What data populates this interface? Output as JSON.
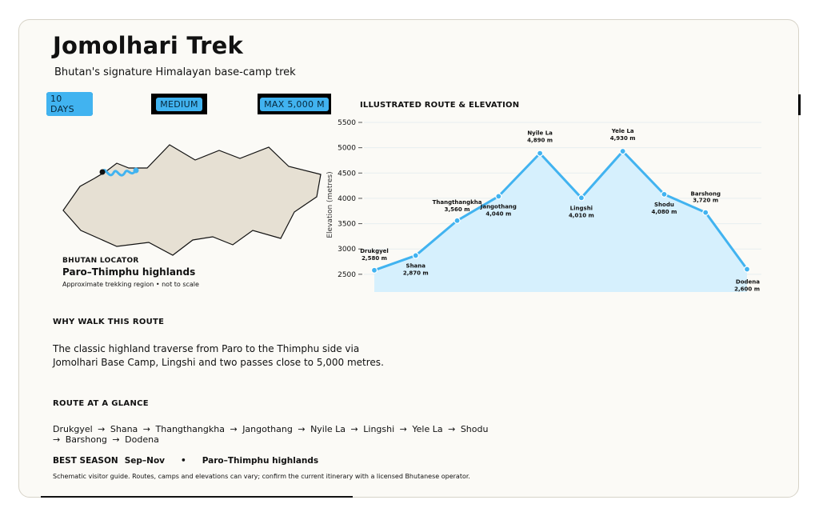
{
  "header": {
    "title": "Jomolhari Trek",
    "subtitle": "Bhutan's signature Himalayan base-camp trek"
  },
  "chips": [
    "10 DAYS",
    "MEDIUM",
    "MAX 5,000 M"
  ],
  "locator": {
    "label": "BHUTAN LOCATOR",
    "region": "Paro–Thimphu highlands",
    "note": "Approximate trekking region • not to scale"
  },
  "elevation": {
    "heading": "ILLUSTRATED ROUTE & ELEVATION"
  },
  "why": {
    "heading": "WHY WALK THIS ROUTE",
    "text": "The classic highland traverse from Paro to the Thimphu side via Jomolhari Base Camp, Lingshi and two passes close to 5,000 metres."
  },
  "glance": {
    "heading": "ROUTE AT A GLANCE",
    "stops": [
      "Drukgyel",
      "Shana",
      "Thangthangkha",
      "Jangothang",
      "Nyile La",
      "Lingshi",
      "Yele La",
      "Shodu",
      "Barshong",
      "Dodena"
    ]
  },
  "season": {
    "label": "BEST SEASON",
    "value": "Sep–Nov",
    "separator": "•",
    "region": "Paro–Thimphu highlands"
  },
  "footer": "Schematic visitor guide. Routes, camps and elevations can vary; confirm the current itinerary with a licensed Bhutanese operator.",
  "colors": {
    "accent": "#41b3f0",
    "area": "#d6f0fd",
    "map_fill": "#e6e0d3"
  },
  "chart_data": {
    "type": "line",
    "ylabel": "Elevation (metres)",
    "yticks": [
      2500,
      3000,
      3500,
      4000,
      4500,
      5000,
      5500
    ],
    "ylim": [
      2150,
      5500
    ],
    "grid": true,
    "series": [
      {
        "points": [
          {
            "name": "Drukgyel",
            "label": "2,580 m",
            "y": 2580
          },
          {
            "name": "Shana",
            "label": "2,870 m",
            "y": 2870
          },
          {
            "name": "Thangthangkha",
            "label": "3,560 m",
            "y": 3560
          },
          {
            "name": "Jangothang",
            "label": "4,040 m",
            "y": 4040
          },
          {
            "name": "Nyile La",
            "label": "4,890 m",
            "y": 4890
          },
          {
            "name": "Lingshi",
            "label": "4,010 m",
            "y": 4010
          },
          {
            "name": "Yele La",
            "label": "4,930 m",
            "y": 4930
          },
          {
            "name": "Shodu",
            "label": "4,080 m",
            "y": 4080
          },
          {
            "name": "Barshong",
            "label": "3,720 m",
            "y": 3720
          },
          {
            "name": "Dodena",
            "label": "2,600 m",
            "y": 2600
          }
        ]
      }
    ]
  }
}
